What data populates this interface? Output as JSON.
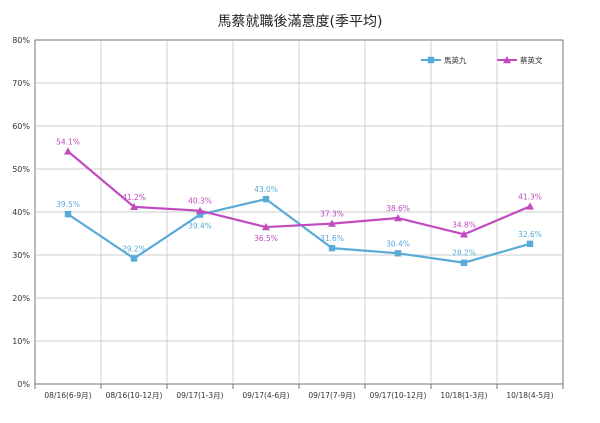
{
  "chart_data": {
    "type": "line",
    "title": "馬蔡就職後滿意度(季平均)",
    "xlabel": "",
    "ylabel": "",
    "ylim": [
      0,
      80
    ],
    "y_ticks": [
      "0%",
      "10%",
      "20%",
      "30%",
      "40%",
      "50%",
      "60%",
      "70%",
      "80%"
    ],
    "grid": true,
    "legend_position": "top-right",
    "categories": [
      "08/16(6-9月)",
      "08/16(10-12月)",
      "09/17(1-3月)",
      "09/17(4-6月)",
      "09/17(7-9月)",
      "09/17(10-12月)",
      "10/18(1-3月)",
      "10/18(4-5月)"
    ],
    "series": [
      {
        "name": "馬英九",
        "color": "#5aaad8",
        "marker": "square",
        "values": [
          39.5,
          29.2,
          39.4,
          43.0,
          31.6,
          30.4,
          28.2,
          32.6
        ],
        "labels": [
          "39.5%",
          "29.2%",
          "39.4%",
          "43.0%",
          "31.6%",
          "30.4%",
          "28.2%",
          "32.6%"
        ],
        "label_pos": [
          "above",
          "above",
          "below",
          "above",
          "above",
          "above",
          "above",
          "above"
        ]
      },
      {
        "name": "蔡英文",
        "color": "#c04cc0",
        "marker": "triangle",
        "values": [
          54.1,
          41.2,
          40.3,
          36.5,
          37.3,
          38.6,
          34.8,
          41.3
        ],
        "labels": [
          "54.1%",
          "41.2%",
          "40.3%",
          "36.5%",
          "37.3%",
          "38.6%",
          "34.8%",
          "41.3%"
        ],
        "label_pos": [
          "above",
          "above",
          "above",
          "below",
          "above",
          "above",
          "above",
          "above"
        ]
      }
    ]
  }
}
